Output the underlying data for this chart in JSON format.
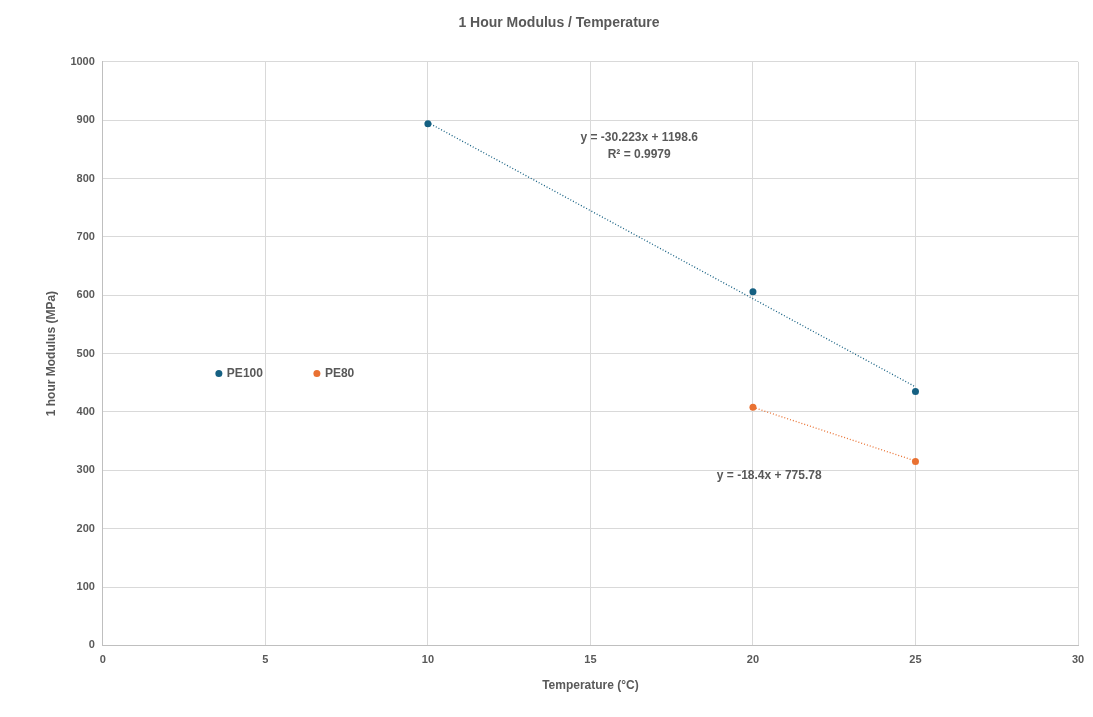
{
  "chart_data": {
    "type": "scatter",
    "title": "1 Hour Modulus / Temperature",
    "xlabel": "Temperature (°C)",
    "ylabel": "1 hour Modulus (MPa)",
    "series": [
      {
        "name": "PE100",
        "color": "#156082",
        "x": [
          10,
          20,
          25
        ],
        "values": [
          894,
          606,
          435
        ]
      },
      {
        "name": "PE80",
        "color": "#e97132",
        "x": [
          20,
          25
        ],
        "values": [
          408,
          315
        ]
      },
      {
        "type": "line",
        "color": "#156082",
        "x": [
          10,
          25
        ],
        "values": [
          896,
          443
        ],
        "line_style": "dotted",
        "marker": "none"
      },
      {
        "type": "line",
        "color": "#e97132",
        "x": [
          20,
          25
        ],
        "values": [
          408,
          316
        ],
        "line_style": "dotted",
        "marker": "none"
      }
    ],
    "annotations": [
      "y = -30.223x + 1198.6",
      "R² = 0.9979",
      "y = -18.4x + 775.78"
    ],
    "marker": "circle",
    "grid": true,
    "legend": "left",
    "xlim": [
      0,
      30
    ],
    "xticks": [
      0,
      5,
      10,
      15,
      20,
      25,
      30
    ],
    "ylim": [
      0,
      1000
    ],
    "yticks": [
      0,
      100,
      200,
      300,
      400,
      500,
      600,
      700,
      800,
      900,
      1000
    ]
  }
}
